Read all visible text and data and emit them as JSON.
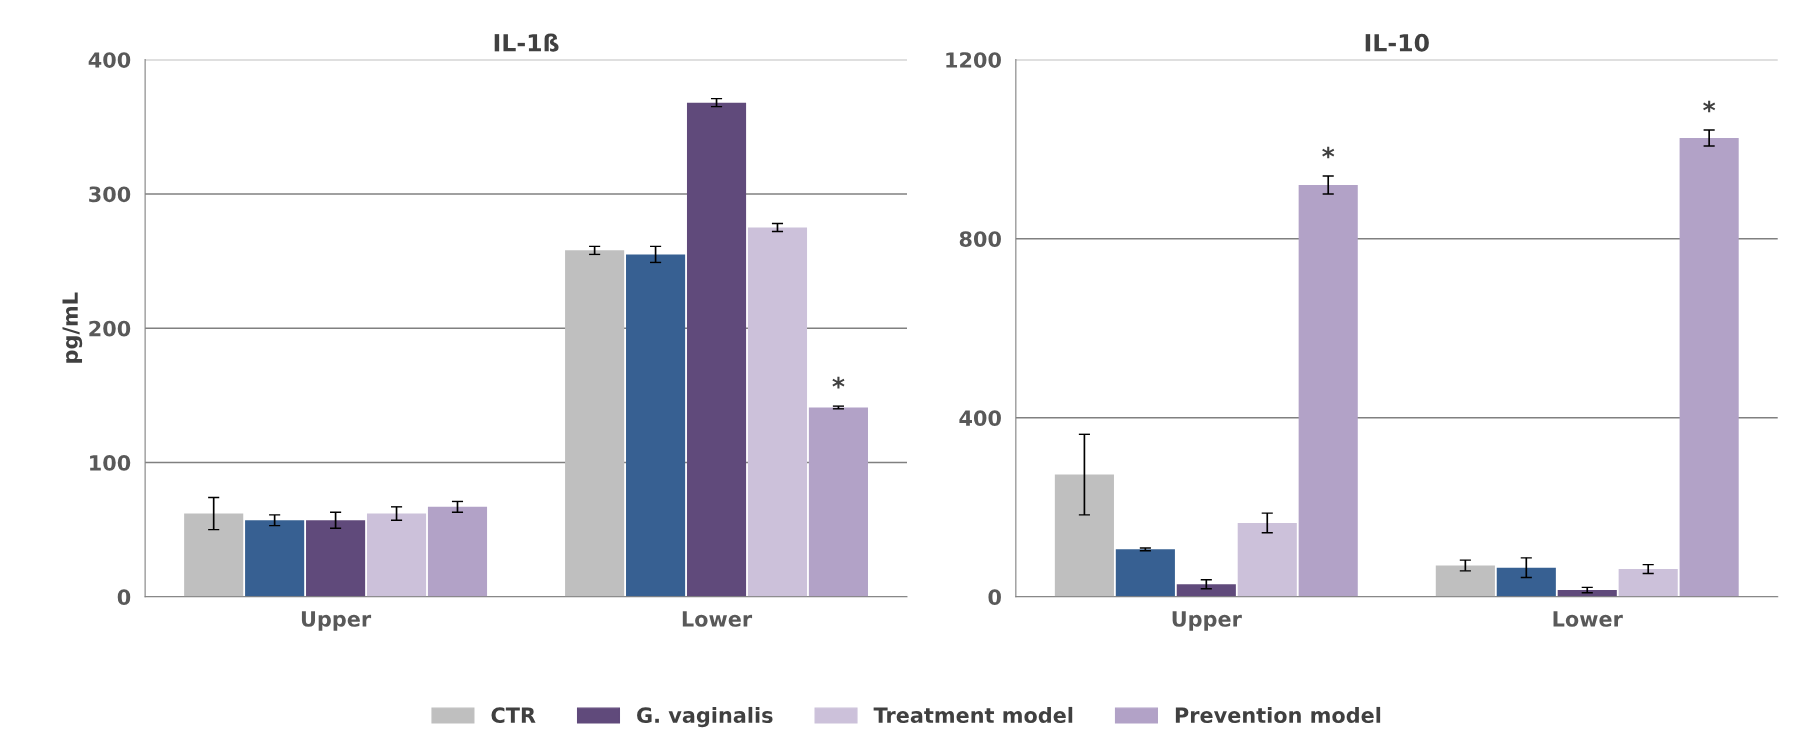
{
  "chart_data": [
    {
      "type": "bar",
      "title": "IL-1ß",
      "ylabel": "pg/mL",
      "categories": [
        "Upper",
        "Lower"
      ],
      "ylim": [
        0,
        400
      ],
      "yticks": [
        0,
        100,
        200,
        300,
        400
      ],
      "grid": "y",
      "legend": "bottom",
      "series": [
        {
          "name": "CTR",
          "color": "#bfbfbf",
          "values": [
            62,
            258
          ],
          "errors": [
            12,
            3
          ]
        },
        {
          "color": "#376092",
          "values": [
            57,
            255
          ],
          "errors": [
            4,
            6
          ]
        },
        {
          "name": "G. vaginalis",
          "color": "#604a7b",
          "values": [
            57,
            368
          ],
          "errors": [
            6,
            3
          ]
        },
        {
          "name": "Treatment model",
          "color": "#ccc1da",
          "values": [
            62,
            275
          ],
          "errors": [
            5,
            3
          ]
        },
        {
          "name": "Prevention model",
          "color": "#b2a2c7",
          "values": [
            67,
            141
          ],
          "errors": [
            4,
            1
          ]
        }
      ],
      "annotations": [
        "*"
      ]
    },
    {
      "type": "bar",
      "title": "IL-10",
      "categories": [
        "Upper",
        "Lower"
      ],
      "ylim": [
        0,
        1200
      ],
      "yticks": [
        0,
        400,
        800,
        1200
      ],
      "grid": "y",
      "series": [
        {
          "color": "#bfbfbf",
          "values": [
            273,
            70
          ],
          "errors": [
            90,
            12
          ]
        },
        {
          "color": "#376092",
          "values": [
            106,
            65
          ],
          "errors": [
            3,
            22
          ]
        },
        {
          "color": "#604a7b",
          "values": [
            28,
            15
          ],
          "errors": [
            10,
            6
          ]
        },
        {
          "color": "#ccc1da",
          "values": [
            165,
            62
          ],
          "errors": [
            22,
            10
          ]
        },
        {
          "color": "#b2a2c7",
          "values": [
            920,
            1025
          ],
          "errors": [
            20,
            18
          ]
        }
      ],
      "annotations": [
        "*",
        "*"
      ]
    }
  ]
}
